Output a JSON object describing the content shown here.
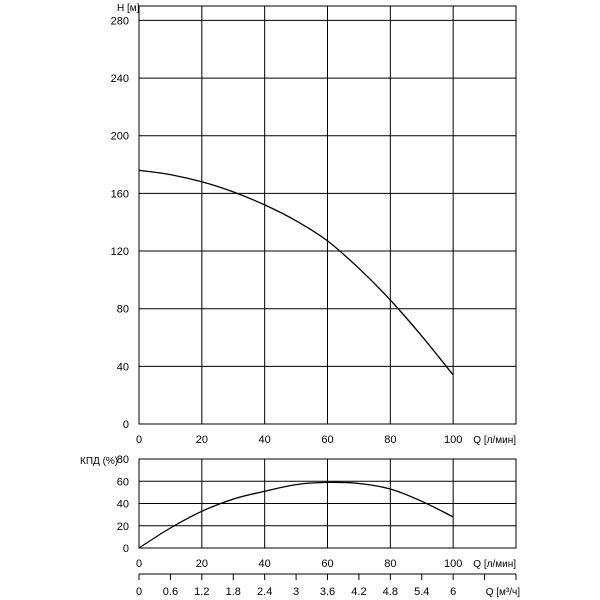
{
  "chart_data": [
    {
      "type": "line",
      "title": "",
      "xlabel": "Q [л/мин]",
      "ylabel": "H [м]",
      "xlim": [
        0,
        120
      ],
      "ylim": [
        0,
        290
      ],
      "x_ticks": [
        0,
        20,
        40,
        60,
        80,
        100
      ],
      "y_ticks": [
        0,
        40,
        80,
        120,
        160,
        200,
        240,
        280
      ],
      "grid": true,
      "series": [
        {
          "x": [
            0,
            10,
            20,
            30,
            40,
            50,
            60,
            70,
            80,
            90,
            100
          ],
          "y": [
            176,
            173,
            168,
            161,
            152,
            141,
            127,
            108,
            86,
            61,
            34
          ]
        }
      ]
    },
    {
      "type": "line",
      "title": "",
      "xlabel": "Q [л/мин]",
      "ylabel": "КПД (%)",
      "xlim": [
        0,
        120
      ],
      "ylim": [
        0,
        80
      ],
      "x_ticks": [
        0,
        20,
        40,
        60,
        80,
        100
      ],
      "y_ticks": [
        0,
        20,
        40,
        60,
        80
      ],
      "grid": true,
      "series": [
        {
          "x": [
            0,
            10,
            20,
            30,
            40,
            50,
            60,
            70,
            80,
            90,
            100
          ],
          "y": [
            0,
            18,
            33,
            44,
            51,
            57,
            59,
            58,
            53,
            42,
            28
          ]
        }
      ]
    },
    {
      "type": "axis",
      "xlabel": "Q [м³/ч]",
      "xlim": [
        0,
        7.2
      ],
      "x_ticks": [
        0,
        0.6,
        1.2,
        1.8,
        2.4,
        3,
        3.6,
        4.2,
        4.8,
        5.4,
        6
      ],
      "x_tick_labels": [
        "0",
        "0.6",
        "1.2",
        "1.8",
        "2.4",
        "3",
        "3.6",
        "4.2",
        "4.8",
        "5.4",
        "6"
      ]
    }
  ]
}
